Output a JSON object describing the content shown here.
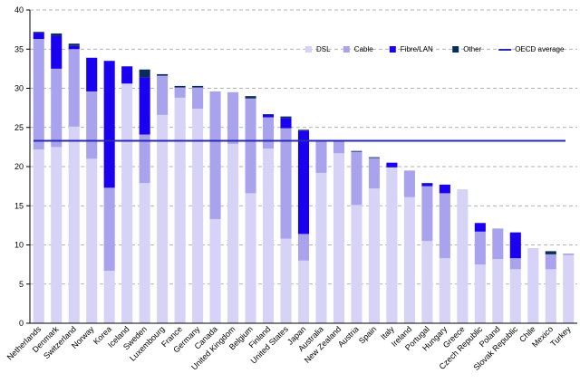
{
  "chart_data": {
    "type": "bar",
    "stacked": true,
    "categories": [
      "Netherlands",
      "Denmark",
      "Switzerland",
      "Norway",
      "Korea",
      "Iceland",
      "Sweden",
      "Luxembourg",
      "France",
      "Germany",
      "Canada",
      "United Kingdom",
      "Belgium",
      "Finland",
      "United States",
      "Japan",
      "Australia",
      "New Zealand",
      "Austria",
      "Spain",
      "Italy",
      "Ireland",
      "Portugal",
      "Hungary",
      "Greece",
      "Czech Republic",
      "Poland",
      "Slovak Republic",
      "Chile",
      "Mexico",
      "Turkey"
    ],
    "series": [
      {
        "name": "DSL",
        "color": "#d6d3f6",
        "values": [
          22.2,
          22.5,
          25.1,
          21.0,
          6.7,
          30.6,
          17.9,
          26.6,
          28.8,
          27.4,
          13.3,
          22.9,
          16.6,
          22.3,
          10.8,
          8.0,
          19.2,
          21.7,
          15.1,
          17.2,
          19.9,
          16.1,
          10.5,
          8.3,
          17.1,
          7.5,
          8.2,
          6.9,
          9.6,
          6.9,
          8.7
        ]
      },
      {
        "name": "Cable",
        "color": "#a8a3ec",
        "values": [
          14.1,
          10.0,
          9.9,
          8.6,
          10.6,
          0,
          6.2,
          5.0,
          1.3,
          2.7,
          16.3,
          6.6,
          12.1,
          4.0,
          14.1,
          3.4,
          4.1,
          1.6,
          6.8,
          3.9,
          0,
          3.4,
          7.0,
          8.3,
          0,
          4.2,
          3.9,
          1.4,
          0,
          1.9,
          0.2
        ]
      },
      {
        "name": "Fibre/LAN",
        "color": "#1a00f0",
        "values": [
          0.8,
          4.2,
          0.4,
          4.3,
          16.2,
          2.2,
          7.3,
          0,
          0,
          0,
          0,
          0,
          0,
          0.3,
          1.3,
          13.2,
          0,
          0,
          0,
          0,
          0.6,
          0,
          0.3,
          1.1,
          0,
          1.1,
          0,
          3.3,
          0,
          0,
          0
        ]
      },
      {
        "name": "Other",
        "color": "#0a2c5a",
        "values": [
          0.1,
          0.3,
          0.3,
          0,
          0,
          0,
          1.0,
          0.2,
          0.2,
          0.2,
          0,
          0,
          0.3,
          0.1,
          0.2,
          0.1,
          0,
          0,
          0.1,
          0.1,
          0,
          0,
          0.1,
          0,
          0,
          0,
          0,
          0,
          0,
          0.4,
          0
        ]
      }
    ],
    "reference_line": {
      "name": "OECD average",
      "value": 23.3,
      "color": "#2a2ab4"
    },
    "ylim": [
      0,
      40
    ],
    "yticks": [
      0,
      5,
      10,
      15,
      20,
      25,
      30,
      35,
      40
    ],
    "xlabel": "",
    "ylabel": "",
    "title": "",
    "grid": true,
    "legend_position": "top-right"
  }
}
